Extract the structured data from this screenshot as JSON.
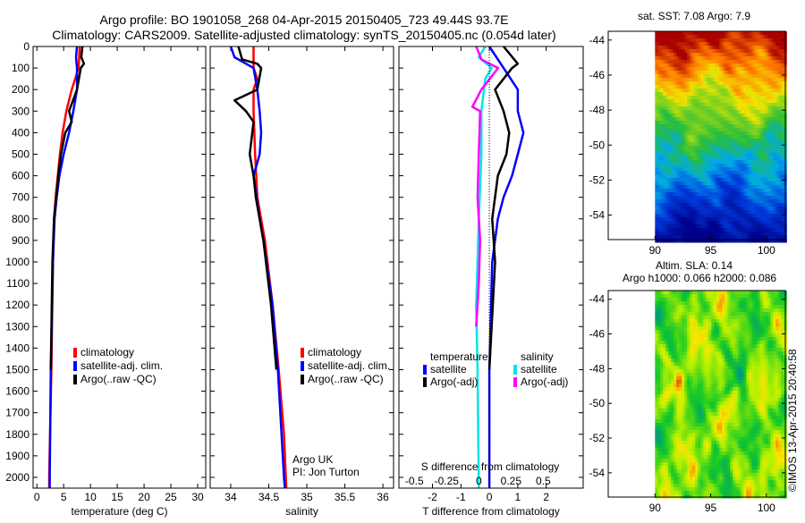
{
  "title": {
    "line1": "Argo profile: BO 1901058_268 04-Apr-2015 20150405_723 49.44S 93.7E",
    "line2": "Climatology: CARS2009. Satellite-adjusted climatology: synTS_20150405.nc (0.054d later)"
  },
  "chart_data": [
    {
      "type": "line",
      "name": "temperature-profile",
      "xlabel": "temperature (deg C)",
      "ylabel": "",
      "xlim": [
        -0.7,
        31.5
      ],
      "ylim": [
        2050,
        0
      ],
      "xticks": [
        0,
        5,
        10,
        15,
        20,
        25,
        30
      ],
      "yticks": [
        0,
        100,
        200,
        300,
        400,
        500,
        600,
        700,
        800,
        900,
        1000,
        1100,
        1200,
        1300,
        1400,
        1500,
        1600,
        1700,
        1800,
        1900,
        2000
      ],
      "legend": [
        "climatology",
        "satellite-adj. clim.",
        "Argo(..raw -QC)"
      ],
      "legend_position": "lower-right",
      "series": [
        {
          "name": "climatology",
          "color": "#ff0000",
          "depth": [
            0,
            100,
            200,
            300,
            400,
            500,
            600,
            700,
            800,
            1000,
            1500,
            2000,
            2050
          ],
          "values": [
            8,
            7.8,
            6.5,
            5.5,
            4.8,
            4.3,
            3.9,
            3.5,
            3.2,
            3.0,
            2.7,
            2.3,
            2.3
          ]
        },
        {
          "name": "satellite-adj. clim.",
          "color": "#0000ff",
          "depth": [
            0,
            50,
            100,
            200,
            300,
            400,
            500,
            600,
            700,
            800,
            1000,
            1500,
            2000,
            2050
          ],
          "values": [
            7.5,
            7.3,
            7.5,
            7.5,
            6.8,
            6.0,
            5.0,
            4.2,
            3.7,
            3.3,
            3.0,
            2.6,
            2.4,
            2.4
          ]
        },
        {
          "name": "Argo(..raw -QC)",
          "color": "#000000",
          "depth": [
            0,
            50,
            80,
            100,
            200,
            300,
            350,
            400,
            500,
            600,
            800,
            1000,
            1500
          ],
          "values": [
            8.5,
            8.3,
            8.8,
            8.2,
            7.5,
            6.0,
            6.5,
            5.3,
            4.5,
            4.0,
            3.2,
            2.9,
            2.6
          ]
        }
      ]
    },
    {
      "type": "line",
      "name": "salinity-profile",
      "xlabel": "salinity",
      "xlim": [
        33.73,
        36.14
      ],
      "ylim": [
        2050,
        0
      ],
      "xticks": [
        34,
        34.5,
        35,
        35.5,
        36
      ],
      "legend": [
        "climatology",
        "satellite-adj. clim.",
        "Argo(..raw -QC)"
      ],
      "legend_position": "lower-right",
      "annotation": [
        "Argo UK",
        "PI: Jon Turton"
      ],
      "series": [
        {
          "name": "climatology",
          "color": "#ff0000",
          "depth": [
            0,
            100,
            150,
            200,
            300,
            500,
            700,
            900,
            1200,
            1500,
            1800,
            2050
          ],
          "values": [
            34.3,
            34.3,
            34.35,
            34.3,
            34.3,
            34.32,
            34.35,
            34.45,
            34.55,
            34.63,
            34.7,
            34.73
          ]
        },
        {
          "name": "satellite-adj. clim.",
          "color": "#0000ff",
          "depth": [
            0,
            50,
            100,
            200,
            300,
            400,
            500,
            600,
            800,
            900,
            1200,
            1500,
            2000,
            2050
          ],
          "values": [
            34.0,
            34.05,
            34.3,
            34.35,
            34.38,
            34.4,
            34.38,
            34.3,
            34.38,
            34.43,
            34.55,
            34.62,
            34.7,
            34.71
          ]
        },
        {
          "name": "Argo(..raw -QC)",
          "color": "#000000",
          "depth": [
            0,
            60,
            80,
            100,
            200,
            250,
            300,
            350,
            500,
            600,
            700,
            900,
            1200,
            1500
          ],
          "values": [
            34.1,
            34.15,
            34.35,
            34.4,
            34.35,
            34.05,
            34.2,
            34.3,
            34.25,
            34.3,
            34.33,
            34.43,
            34.53,
            34.6
          ]
        }
      ]
    },
    {
      "type": "line",
      "name": "difference-profile",
      "xlabel": "T difference from climatology",
      "x2label": "S difference from climatology",
      "xlim": [
        -3.18,
        3.3
      ],
      "x2lim": [
        -0.62,
        0.81
      ],
      "ylim": [
        2050,
        0
      ],
      "xticks": [
        -2,
        -1,
        0,
        1,
        2
      ],
      "x2ticks": [
        -0.5,
        -0.25,
        0,
        0.25,
        0.5
      ],
      "legend_headers": [
        "temperature",
        "salinity"
      ],
      "legend": [
        "satellite",
        "Argo(-adj)",
        "satellite",
        "Argo(-adj)"
      ],
      "series": [
        {
          "name": "T satellite",
          "axis": "T",
          "color": "#0000ff",
          "depth": [
            0,
            100,
            200,
            300,
            400,
            500,
            600,
            700,
            800,
            1000,
            1500,
            2050
          ],
          "values": [
            0,
            0.5,
            1.0,
            1.0,
            1.2,
            1.0,
            0.8,
            0.5,
            0.3,
            0.1,
            0,
            0
          ]
        },
        {
          "name": "T Argo(-adj)",
          "axis": "T",
          "color": "#000000",
          "depth": [
            0,
            80,
            100,
            200,
            300,
            400,
            500,
            600,
            800,
            1000,
            1500
          ],
          "values": [
            0.5,
            1.0,
            0.8,
            0.2,
            0.5,
            0.7,
            0.6,
            0.3,
            0.1,
            0.2,
            0
          ]
        },
        {
          "name": "S satellite",
          "axis": "S",
          "color": "#00e5e5",
          "depth": [
            0,
            50,
            100,
            150,
            200,
            300,
            500,
            800,
            1200,
            1500,
            2050
          ],
          "values": [
            0.05,
            0,
            0.1,
            0.05,
            0.04,
            0.02,
            0.02,
            0,
            -0.02,
            -0.01,
            0
          ]
        },
        {
          "name": "S Argo(-adj)",
          "axis": "S",
          "color": "#ff00ff",
          "depth": [
            0,
            60,
            100,
            200,
            280,
            300,
            500,
            700,
            900,
            1100,
            1300
          ],
          "values": [
            -0.02,
            0.02,
            0.15,
            0.02,
            -0.05,
            0.01,
            0,
            -0.01,
            0.01,
            0,
            -0.02
          ]
        }
      ]
    },
    {
      "type": "heatmap",
      "name": "sst-map",
      "title": "sat. SST: 7.08 Argo: 7.9",
      "xlim": [
        85.8,
        101.7
      ],
      "ylim": [
        -55.4,
        -43.5
      ],
      "xticks": [
        90,
        95,
        100
      ],
      "yticks": [
        -44,
        -46,
        -48,
        -50,
        -52,
        -54
      ],
      "data_lon_min": 90
    },
    {
      "type": "heatmap",
      "name": "sla-map",
      "title": "Altim. SLA: 0.14",
      "subtitle": "Argo h1000: 0.066 h2000: 0.086",
      "xlim": [
        85.8,
        101.7
      ],
      "ylim": [
        -55.4,
        -43.5
      ],
      "xticks": [
        90,
        95,
        100
      ],
      "yticks": [
        -44,
        -46,
        -48,
        -50,
        -52,
        -54
      ],
      "data_lon_min": 90
    }
  ],
  "credit": "©IMOS 13-Apr-2015 20:40:58"
}
